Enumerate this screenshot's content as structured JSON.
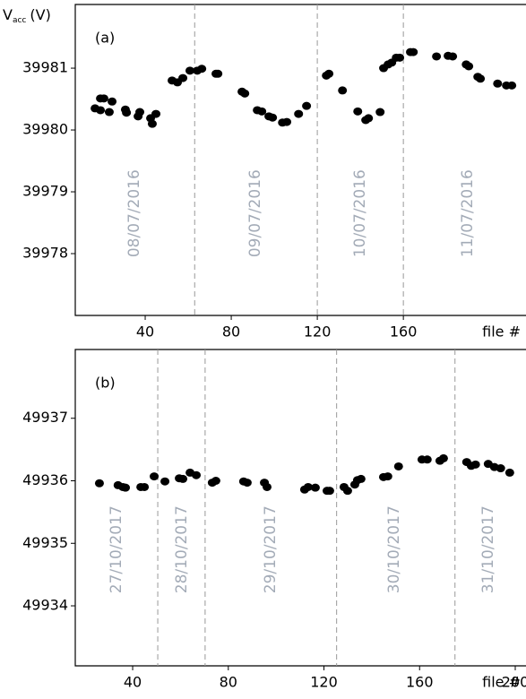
{
  "chart_data": [
    {
      "type": "scatter",
      "panel_label": "(a)",
      "y_label": [
        "V",
        "acc",
        "(V)"
      ],
      "x_label": "file #",
      "xlim": [
        7.5,
        217
      ],
      "ylim": [
        39977,
        39982.03
      ],
      "xticks": [
        40,
        80,
        120,
        160
      ],
      "yticks": [
        39978,
        39979,
        39980,
        39981
      ],
      "vlines": [
        63,
        120,
        160
      ],
      "annotations": [
        {
          "text": "08/07/2016",
          "x": 35,
          "y": 39978.65
        },
        {
          "text": "09/07/2016",
          "x": 91.3,
          "y": 39978.65
        },
        {
          "text": "10/07/2016",
          "x": 140,
          "y": 39978.65
        },
        {
          "text": "11/07/2016",
          "x": 190,
          "y": 39978.65
        }
      ],
      "series": [
        {
          "color": "#000000",
          "x": [
            16.7,
            19.2,
            19.2,
            20.8,
            23.3,
            24.6,
            30.8,
            31.3,
            36.7,
            37.5,
            42.5,
            43.3,
            45,
            52.5,
            55,
            57.5,
            60.8,
            64.2,
            66.3,
            72.9,
            73.8,
            85,
            86.3,
            92.1,
            94.2,
            97.5,
            99.2,
            103.8,
            105.8,
            111.3,
            115,
            124.2,
            125.4,
            131.7,
            138.8,
            142.5,
            143.8,
            149.2,
            150.8,
            152.9,
            154.6,
            156.7,
            158.3,
            163.3,
            164.6,
            175.4,
            180.8,
            182.9,
            189.2,
            190.4,
            194.6,
            195.8,
            203.8,
            207.9,
            210.4
          ],
          "values": [
            39980.35,
            39980.51,
            39980.32,
            39980.51,
            39980.29,
            39980.46,
            39980.33,
            39980.28,
            39980.22,
            39980.29,
            39980.19,
            39980.1,
            39980.26,
            39980.8,
            39980.77,
            39980.84,
            39980.96,
            39980.96,
            39980.99,
            39980.91,
            39980.91,
            39980.62,
            39980.59,
            39980.32,
            39980.3,
            39980.22,
            39980.2,
            39980.12,
            39980.13,
            39980.26,
            39980.39,
            39980.88,
            39980.91,
            39980.64,
            39980.3,
            39980.16,
            39980.19,
            39980.29,
            39981.0,
            39981.06,
            39981.09,
            39981.17,
            39981.17,
            39981.26,
            39981.26,
            39981.19,
            39981.2,
            39981.19,
            39981.06,
            39981.03,
            39980.86,
            39980.83,
            39980.75,
            39980.72,
            39980.72
          ]
        }
      ]
    },
    {
      "type": "scatter",
      "panel_label": "(b)",
      "x_label": "file #",
      "xlim": [
        16,
        204.5
      ],
      "ylim": [
        49933.04,
        49938.1
      ],
      "xticks": [
        40,
        80,
        120,
        160,
        200
      ],
      "yticks": [
        49934,
        49935,
        49936,
        49937
      ],
      "vlines": [
        50.5,
        70.3,
        125.3,
        174.8
      ],
      "annotations": [
        {
          "text": "27/10/2017",
          "x": 33.3,
          "y": 49934.9
        },
        {
          "text": "28/10/2017",
          "x": 60.6,
          "y": 49934.9
        },
        {
          "text": "29/10/2017",
          "x": 97.7,
          "y": 49934.9
        },
        {
          "text": "30/10/2017",
          "x": 149.4,
          "y": 49934.9
        },
        {
          "text": "31/10/2017",
          "x": 188.7,
          "y": 49934.9
        }
      ],
      "series": [
        {
          "color": "#000000",
          "x": [
            26.1,
            33.9,
            35.9,
            37.0,
            43.4,
            44.9,
            49.0,
            53.5,
            59.5,
            61.0,
            64.0,
            66.6,
            73.3,
            74.8,
            86.4,
            87.9,
            95.1,
            96.2,
            111.9,
            113.4,
            116.4,
            121.3,
            122.4,
            128.4,
            129.9,
            132.9,
            134.0,
            135.5,
            144.9,
            146.7,
            151.2,
            161.0,
            163.2,
            168.5,
            170.0,
            179.7,
            181.6,
            183.4,
            188.7,
            191.3,
            193.9,
            197.7
          ],
          "values": [
            49935.96,
            49935.93,
            49935.9,
            49935.89,
            49935.9,
            49935.9,
            49936.07,
            49935.99,
            49936.04,
            49936.03,
            49936.13,
            49936.09,
            49935.97,
            49936.0,
            49935.99,
            49935.97,
            49935.97,
            49935.9,
            49935.86,
            49935.9,
            49935.89,
            49935.84,
            49935.84,
            49935.9,
            49935.84,
            49935.94,
            49936.01,
            49936.03,
            49936.06,
            49936.07,
            49936.23,
            49936.34,
            49936.34,
            49936.32,
            49936.36,
            49936.3,
            49936.24,
            49936.26,
            49936.27,
            49936.22,
            49936.2,
            49936.13
          ]
        }
      ]
    }
  ]
}
